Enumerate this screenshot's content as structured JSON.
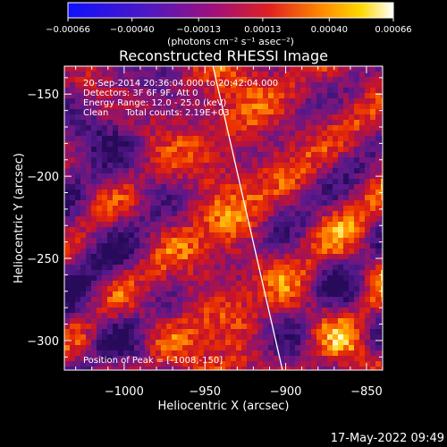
{
  "colorbar": {
    "tick_labels": [
      "-0.00066",
      "-0.00040",
      "-0.00013",
      "0.00013",
      "0.00040",
      "0.00066"
    ],
    "unit_label": "(photons cm⁻² s⁻¹ asec⁻²)",
    "range": [
      -0.00066,
      0.00066
    ]
  },
  "chart_data": {
    "type": "heatmap",
    "title": "Reconstructed RHESSI Image",
    "xlabel": "Heliocentric X (arcsec)",
    "ylabel": "Heliocentric Y (arcsec)",
    "xlim": [
      -1037,
      -840
    ],
    "ylim": [
      -318,
      -133
    ],
    "x_ticks": [
      -1000,
      -950,
      -900,
      -850
    ],
    "y_ticks": [
      -150,
      -200,
      -250,
      -300
    ],
    "x_tick_labels": [
      "-1000",
      "-950",
      "-900",
      "-850"
    ],
    "y_tick_labels": [
      "-150",
      "-200",
      "-250",
      "-300"
    ],
    "grid": false,
    "limb_line": {
      "x": [
        -945,
        -902
      ],
      "y": [
        -133,
        -318
      ],
      "color": "#ffffff"
    },
    "peak": {
      "x": -1008,
      "y": -150
    },
    "colors": {
      "background": "#000000",
      "axes": "#ffffff"
    }
  },
  "info": {
    "line1": "20-Sep-2014 20:36:04.000 to 20:42:04.000",
    "line2": "Detectors: 3F 6F 9F, Att 0",
    "line3": "Energy Range: 12.0 - 25.0 (keV)",
    "line4": "Clean      Total counts: 2.19E+03",
    "peak_text": "Position of Peak = [-1008,-150]"
  },
  "timestamp": "17-May-2022 09:49"
}
